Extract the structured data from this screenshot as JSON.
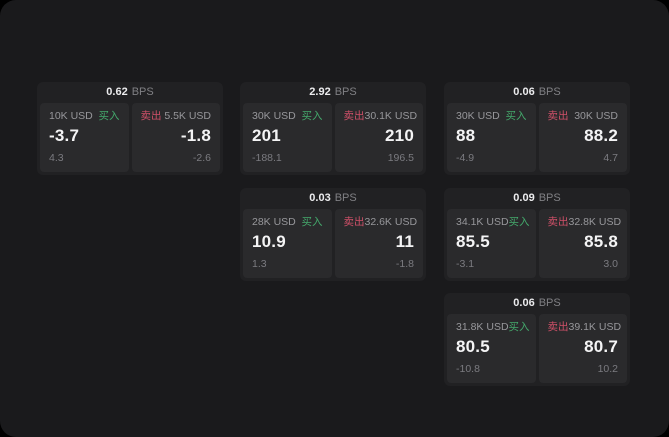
{
  "colors": {
    "page_outside": "#000000",
    "board_bg": "#1a1a1c",
    "card_bg": "#212123",
    "panel_bg": "#2a2a2c",
    "buy": "#44a96c",
    "sell": "#cf5068",
    "text_primary": "#f4f4f5",
    "text_muted": "#97979b"
  },
  "labels": {
    "bps_unit": "BPS",
    "buy": "买入",
    "sell": "卖出"
  },
  "cards": [
    {
      "bps": "0.62",
      "col": 1,
      "row": 1,
      "buy": {
        "amount": "10K USD",
        "value": "-3.7",
        "sub": "4.3"
      },
      "sell": {
        "amount": "5.5K USD",
        "value": "-1.8",
        "sub": "-2.6"
      }
    },
    {
      "bps": "2.92",
      "col": 2,
      "row": 1,
      "buy": {
        "amount": "30K USD",
        "value": "201",
        "sub": "-188.1"
      },
      "sell": {
        "amount": "30.1K USD",
        "value": "210",
        "sub": "196.5"
      }
    },
    {
      "bps": "0.06",
      "col": 3,
      "row": 1,
      "buy": {
        "amount": "30K USD",
        "value": "88",
        "sub": "-4.9"
      },
      "sell": {
        "amount": "30K USD",
        "value": "88.2",
        "sub": "4.7"
      }
    },
    {
      "bps": "0.03",
      "col": 2,
      "row": 2,
      "buy": {
        "amount": "28K USD",
        "value": "10.9",
        "sub": "1.3"
      },
      "sell": {
        "amount": "32.6K USD",
        "value": "11",
        "sub": "-1.8"
      }
    },
    {
      "bps": "0.09",
      "col": 3,
      "row": 2,
      "buy": {
        "amount": "34.1K USD",
        "value": "85.5",
        "sub": "-3.1"
      },
      "sell": {
        "amount": "32.8K USD",
        "value": "85.8",
        "sub": "3.0"
      }
    },
    {
      "bps": "0.06",
      "col": 3,
      "row": 3,
      "buy": {
        "amount": "31.8K USD",
        "value": "80.5",
        "sub": "-10.8"
      },
      "sell": {
        "amount": "39.1K USD",
        "value": "80.7",
        "sub": "10.2"
      }
    }
  ]
}
